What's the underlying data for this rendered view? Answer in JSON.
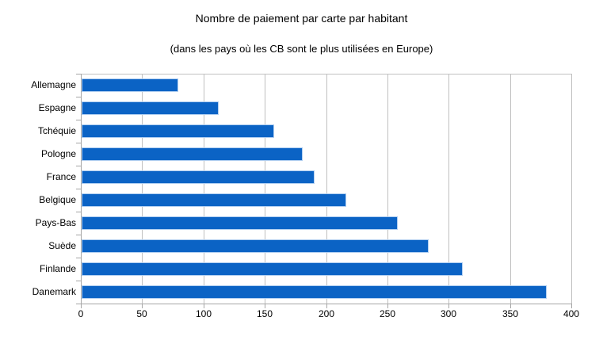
{
  "chart_data": {
    "type": "bar",
    "orientation": "horizontal",
    "title": "Nombre de paiement par carte par habitant",
    "subtitle": "(dans les pays où les CB sont le plus utilisées en Europe)",
    "categories": [
      "Allemagne",
      "Espagne",
      "Tchéquie",
      "Pologne",
      "France",
      "Belgique",
      "Pays-Bas",
      "Suède",
      "Finlande",
      "Danemark"
    ],
    "values": [
      79,
      112,
      157,
      180,
      190,
      216,
      258,
      283,
      311,
      379
    ],
    "xlabel": "",
    "ylabel": "",
    "xlim": [
      0,
      400
    ],
    "xticks": [
      0,
      50,
      100,
      150,
      200,
      250,
      300,
      350,
      400
    ],
    "grid": true,
    "legend_position": "none",
    "colors": {
      "bar_fill": "#0b63c5",
      "bar_border": "#aecdf0",
      "gridline": "#c0c0c0",
      "axis": "#a6a6a6",
      "text": "#000000",
      "background": "#ffffff"
    }
  }
}
